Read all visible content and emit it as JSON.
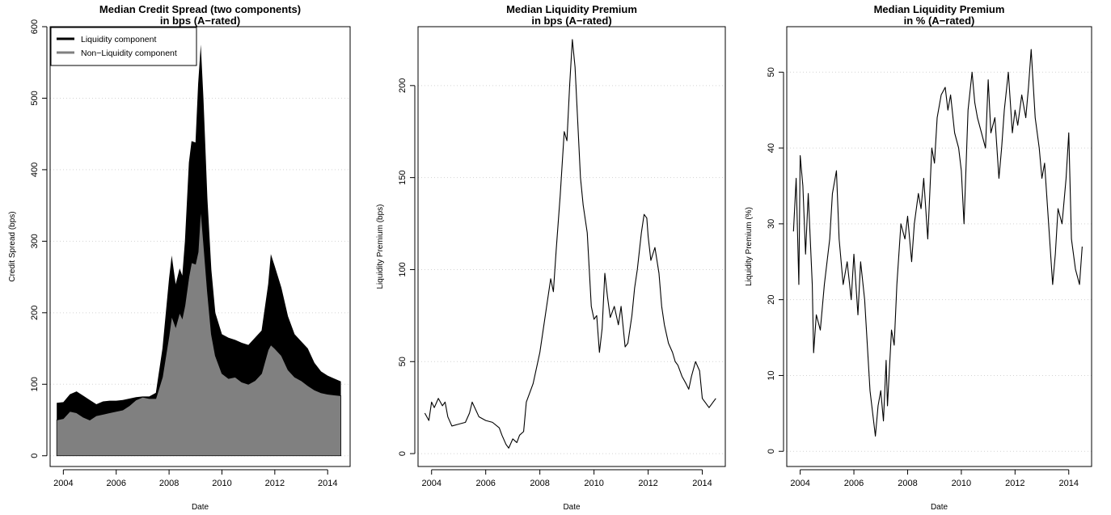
{
  "chart_data": [
    {
      "type": "area",
      "title": "Median Credit Spread (two components)",
      "subtitle": "in bps (A−rated)",
      "xlabel": "Date",
      "ylabel": "Credit Spread (bps)",
      "xlim": [
        2003.5,
        2014.85
      ],
      "ylim": [
        -15,
        600
      ],
      "xticks": [
        2004,
        2006,
        2008,
        2010,
        2012,
        2014
      ],
      "yticks": [
        0,
        100,
        200,
        300,
        400,
        500,
        600
      ],
      "grid": "horizontal dotted",
      "legend_position": "top-left",
      "colors": {
        "liquidity": "#000000",
        "non_liquidity": "#808080"
      },
      "series": [
        {
          "name": "Liquidity component",
          "note": "total spread (top of black band)",
          "x": [
            2003.75,
            2004.0,
            2004.25,
            2004.5,
            2004.75,
            2005.0,
            2005.25,
            2005.5,
            2005.75,
            2006.0,
            2006.25,
            2006.5,
            2006.75,
            2007.0,
            2007.25,
            2007.5,
            2007.75,
            2008.0,
            2008.1,
            2008.25,
            2008.4,
            2008.5,
            2008.6,
            2008.75,
            2008.85,
            2009.0,
            2009.1,
            2009.2,
            2009.3,
            2009.45,
            2009.6,
            2009.75,
            2010.0,
            2010.25,
            2010.5,
            2010.75,
            2011.0,
            2011.25,
            2011.5,
            2011.75,
            2011.85,
            2012.0,
            2012.25,
            2012.5,
            2012.75,
            2013.0,
            2013.25,
            2013.5,
            2013.75,
            2014.0,
            2014.25,
            2014.5
          ],
          "values": [
            74,
            75,
            86,
            90,
            84,
            78,
            72,
            76,
            77,
            77,
            78,
            80,
            82,
            83,
            83,
            88,
            150,
            248,
            280,
            240,
            262,
            252,
            300,
            410,
            440,
            438,
            520,
            575,
            500,
            360,
            260,
            200,
            170,
            165,
            162,
            158,
            155,
            165,
            175,
            240,
            282,
            265,
            235,
            195,
            170,
            160,
            150,
            130,
            118,
            112,
            108,
            104
          ]
        },
        {
          "name": "Non−Liquidity component",
          "x": [
            2003.75,
            2004.0,
            2004.25,
            2004.5,
            2004.75,
            2005.0,
            2005.25,
            2005.5,
            2005.75,
            2006.0,
            2006.25,
            2006.5,
            2006.75,
            2007.0,
            2007.25,
            2007.5,
            2007.75,
            2008.0,
            2008.1,
            2008.25,
            2008.4,
            2008.5,
            2008.6,
            2008.75,
            2008.85,
            2009.0,
            2009.1,
            2009.2,
            2009.3,
            2009.45,
            2009.6,
            2009.75,
            2010.0,
            2010.25,
            2010.5,
            2010.75,
            2011.0,
            2011.25,
            2011.5,
            2011.75,
            2011.85,
            2012.0,
            2012.25,
            2012.5,
            2012.75,
            2013.0,
            2013.25,
            2013.5,
            2013.75,
            2014.0,
            2014.25,
            2014.5
          ],
          "values": [
            50,
            52,
            62,
            60,
            54,
            50,
            56,
            58,
            60,
            62,
            64,
            70,
            78,
            82,
            80,
            80,
            110,
            168,
            195,
            180,
            200,
            192,
            210,
            250,
            270,
            268,
            285,
            345,
            300,
            230,
            170,
            140,
            115,
            108,
            110,
            103,
            100,
            105,
            115,
            148,
            155,
            150,
            140,
            120,
            110,
            105,
            98,
            92,
            88,
            86,
            85,
            84
          ]
        }
      ]
    },
    {
      "type": "line",
      "title": "Median Liquidity Premium",
      "subtitle": "in bps (A−rated)",
      "xlabel": "Date",
      "ylabel": "Liquidity Premium (bps)",
      "xlim": [
        2003.5,
        2014.85
      ],
      "ylim": [
        -7,
        232
      ],
      "xticks": [
        2004,
        2006,
        2008,
        2010,
        2012,
        2014
      ],
      "yticks": [
        0,
        50,
        100,
        150,
        200
      ],
      "grid": "horizontal dotted",
      "colors": {
        "line": "#000000"
      },
      "series": [
        {
          "name": "",
          "x": [
            2003.75,
            2003.9,
            2004.0,
            2004.1,
            2004.25,
            2004.4,
            2004.5,
            2004.6,
            2004.75,
            2005.0,
            2005.25,
            2005.4,
            2005.5,
            2005.75,
            2006.0,
            2006.25,
            2006.5,
            2006.6,
            2006.75,
            2006.85,
            2007.0,
            2007.15,
            2007.25,
            2007.4,
            2007.5,
            2007.75,
            2008.0,
            2008.1,
            2008.25,
            2008.4,
            2008.5,
            2008.6,
            2008.75,
            2008.9,
            2009.0,
            2009.1,
            2009.2,
            2009.3,
            2009.4,
            2009.5,
            2009.6,
            2009.75,
            2009.9,
            2010.0,
            2010.1,
            2010.2,
            2010.3,
            2010.4,
            2010.5,
            2010.6,
            2010.75,
            2010.9,
            2011.0,
            2011.15,
            2011.25,
            2011.4,
            2011.5,
            2011.6,
            2011.75,
            2011.85,
            2011.95,
            2012.0,
            2012.1,
            2012.25,
            2012.4,
            2012.5,
            2012.6,
            2012.75,
            2012.9,
            2013.0,
            2013.1,
            2013.25,
            2013.4,
            2013.5,
            2013.6,
            2013.75,
            2013.9,
            2014.0,
            2014.1,
            2014.25,
            2014.4,
            2014.5
          ],
          "values": [
            22,
            18,
            28,
            25,
            30,
            26,
            28,
            20,
            15,
            16,
            17,
            22,
            28,
            20,
            18,
            17,
            14,
            10,
            5,
            3,
            8,
            6,
            10,
            12,
            28,
            38,
            55,
            65,
            80,
            95,
            88,
            110,
            140,
            175,
            170,
            200,
            225,
            210,
            180,
            150,
            135,
            120,
            80,
            73,
            75,
            55,
            68,
            98,
            85,
            74,
            80,
            70,
            80,
            58,
            60,
            75,
            90,
            100,
            120,
            130,
            128,
            118,
            105,
            112,
            98,
            80,
            70,
            60,
            55,
            50,
            48,
            42,
            38,
            35,
            42,
            50,
            45,
            30,
            28,
            25,
            28,
            30
          ]
        }
      ]
    },
    {
      "type": "line",
      "title": "Median Liquidity Premium",
      "subtitle": "in % (A−rated)",
      "xlabel": "Date",
      "ylabel": "Liquidity Premium (%)",
      "xlim": [
        2003.5,
        2014.85
      ],
      "ylim": [
        -2,
        56
      ],
      "xticks": [
        2004,
        2006,
        2008,
        2010,
        2012,
        2014
      ],
      "yticks": [
        0,
        10,
        20,
        30,
        40,
        50
      ],
      "grid": "horizontal dotted",
      "colors": {
        "line": "#000000"
      },
      "series": [
        {
          "name": "",
          "x": [
            2003.75,
            2003.85,
            2003.95,
            2004.0,
            2004.1,
            2004.2,
            2004.3,
            2004.45,
            2004.5,
            2004.6,
            2004.75,
            2004.9,
            2005.0,
            2005.1,
            2005.2,
            2005.35,
            2005.45,
            2005.6,
            2005.75,
            2005.9,
            2006.0,
            2006.15,
            2006.25,
            2006.4,
            2006.5,
            2006.6,
            2006.7,
            2006.8,
            2006.9,
            2007.0,
            2007.1,
            2007.2,
            2007.25,
            2007.4,
            2007.5,
            2007.6,
            2007.75,
            2007.9,
            2008.0,
            2008.15,
            2008.25,
            2008.4,
            2008.5,
            2008.6,
            2008.75,
            2008.9,
            2009.0,
            2009.1,
            2009.25,
            2009.4,
            2009.5,
            2009.6,
            2009.75,
            2009.9,
            2010.0,
            2010.1,
            2010.25,
            2010.4,
            2010.5,
            2010.6,
            2010.75,
            2010.9,
            2011.0,
            2011.1,
            2011.25,
            2011.4,
            2011.5,
            2011.6,
            2011.75,
            2011.9,
            2012.0,
            2012.1,
            2012.25,
            2012.4,
            2012.5,
            2012.6,
            2012.75,
            2012.9,
            2013.0,
            2013.1,
            2013.25,
            2013.4,
            2013.5,
            2013.6,
            2013.75,
            2013.9,
            2014.0,
            2014.1,
            2014.25,
            2014.4,
            2014.5
          ],
          "values": [
            29,
            36,
            22,
            39,
            35,
            26,
            34,
            22,
            13,
            18,
            16,
            22,
            25,
            28,
            34,
            37,
            28,
            22,
            25,
            20,
            26,
            18,
            25,
            20,
            14,
            8,
            5,
            2,
            6,
            8,
            4,
            12,
            6,
            16,
            14,
            22,
            30,
            28,
            31,
            25,
            30,
            34,
            32,
            36,
            28,
            40,
            38,
            44,
            47,
            48,
            45,
            47,
            42,
            40,
            37,
            30,
            45,
            50,
            46,
            44,
            42,
            40,
            49,
            42,
            44,
            36,
            40,
            45,
            50,
            42,
            45,
            43,
            47,
            44,
            48,
            53,
            44,
            40,
            36,
            38,
            30,
            22,
            26,
            32,
            30,
            36,
            42,
            28,
            24,
            22,
            27
          ]
        }
      ]
    }
  ]
}
